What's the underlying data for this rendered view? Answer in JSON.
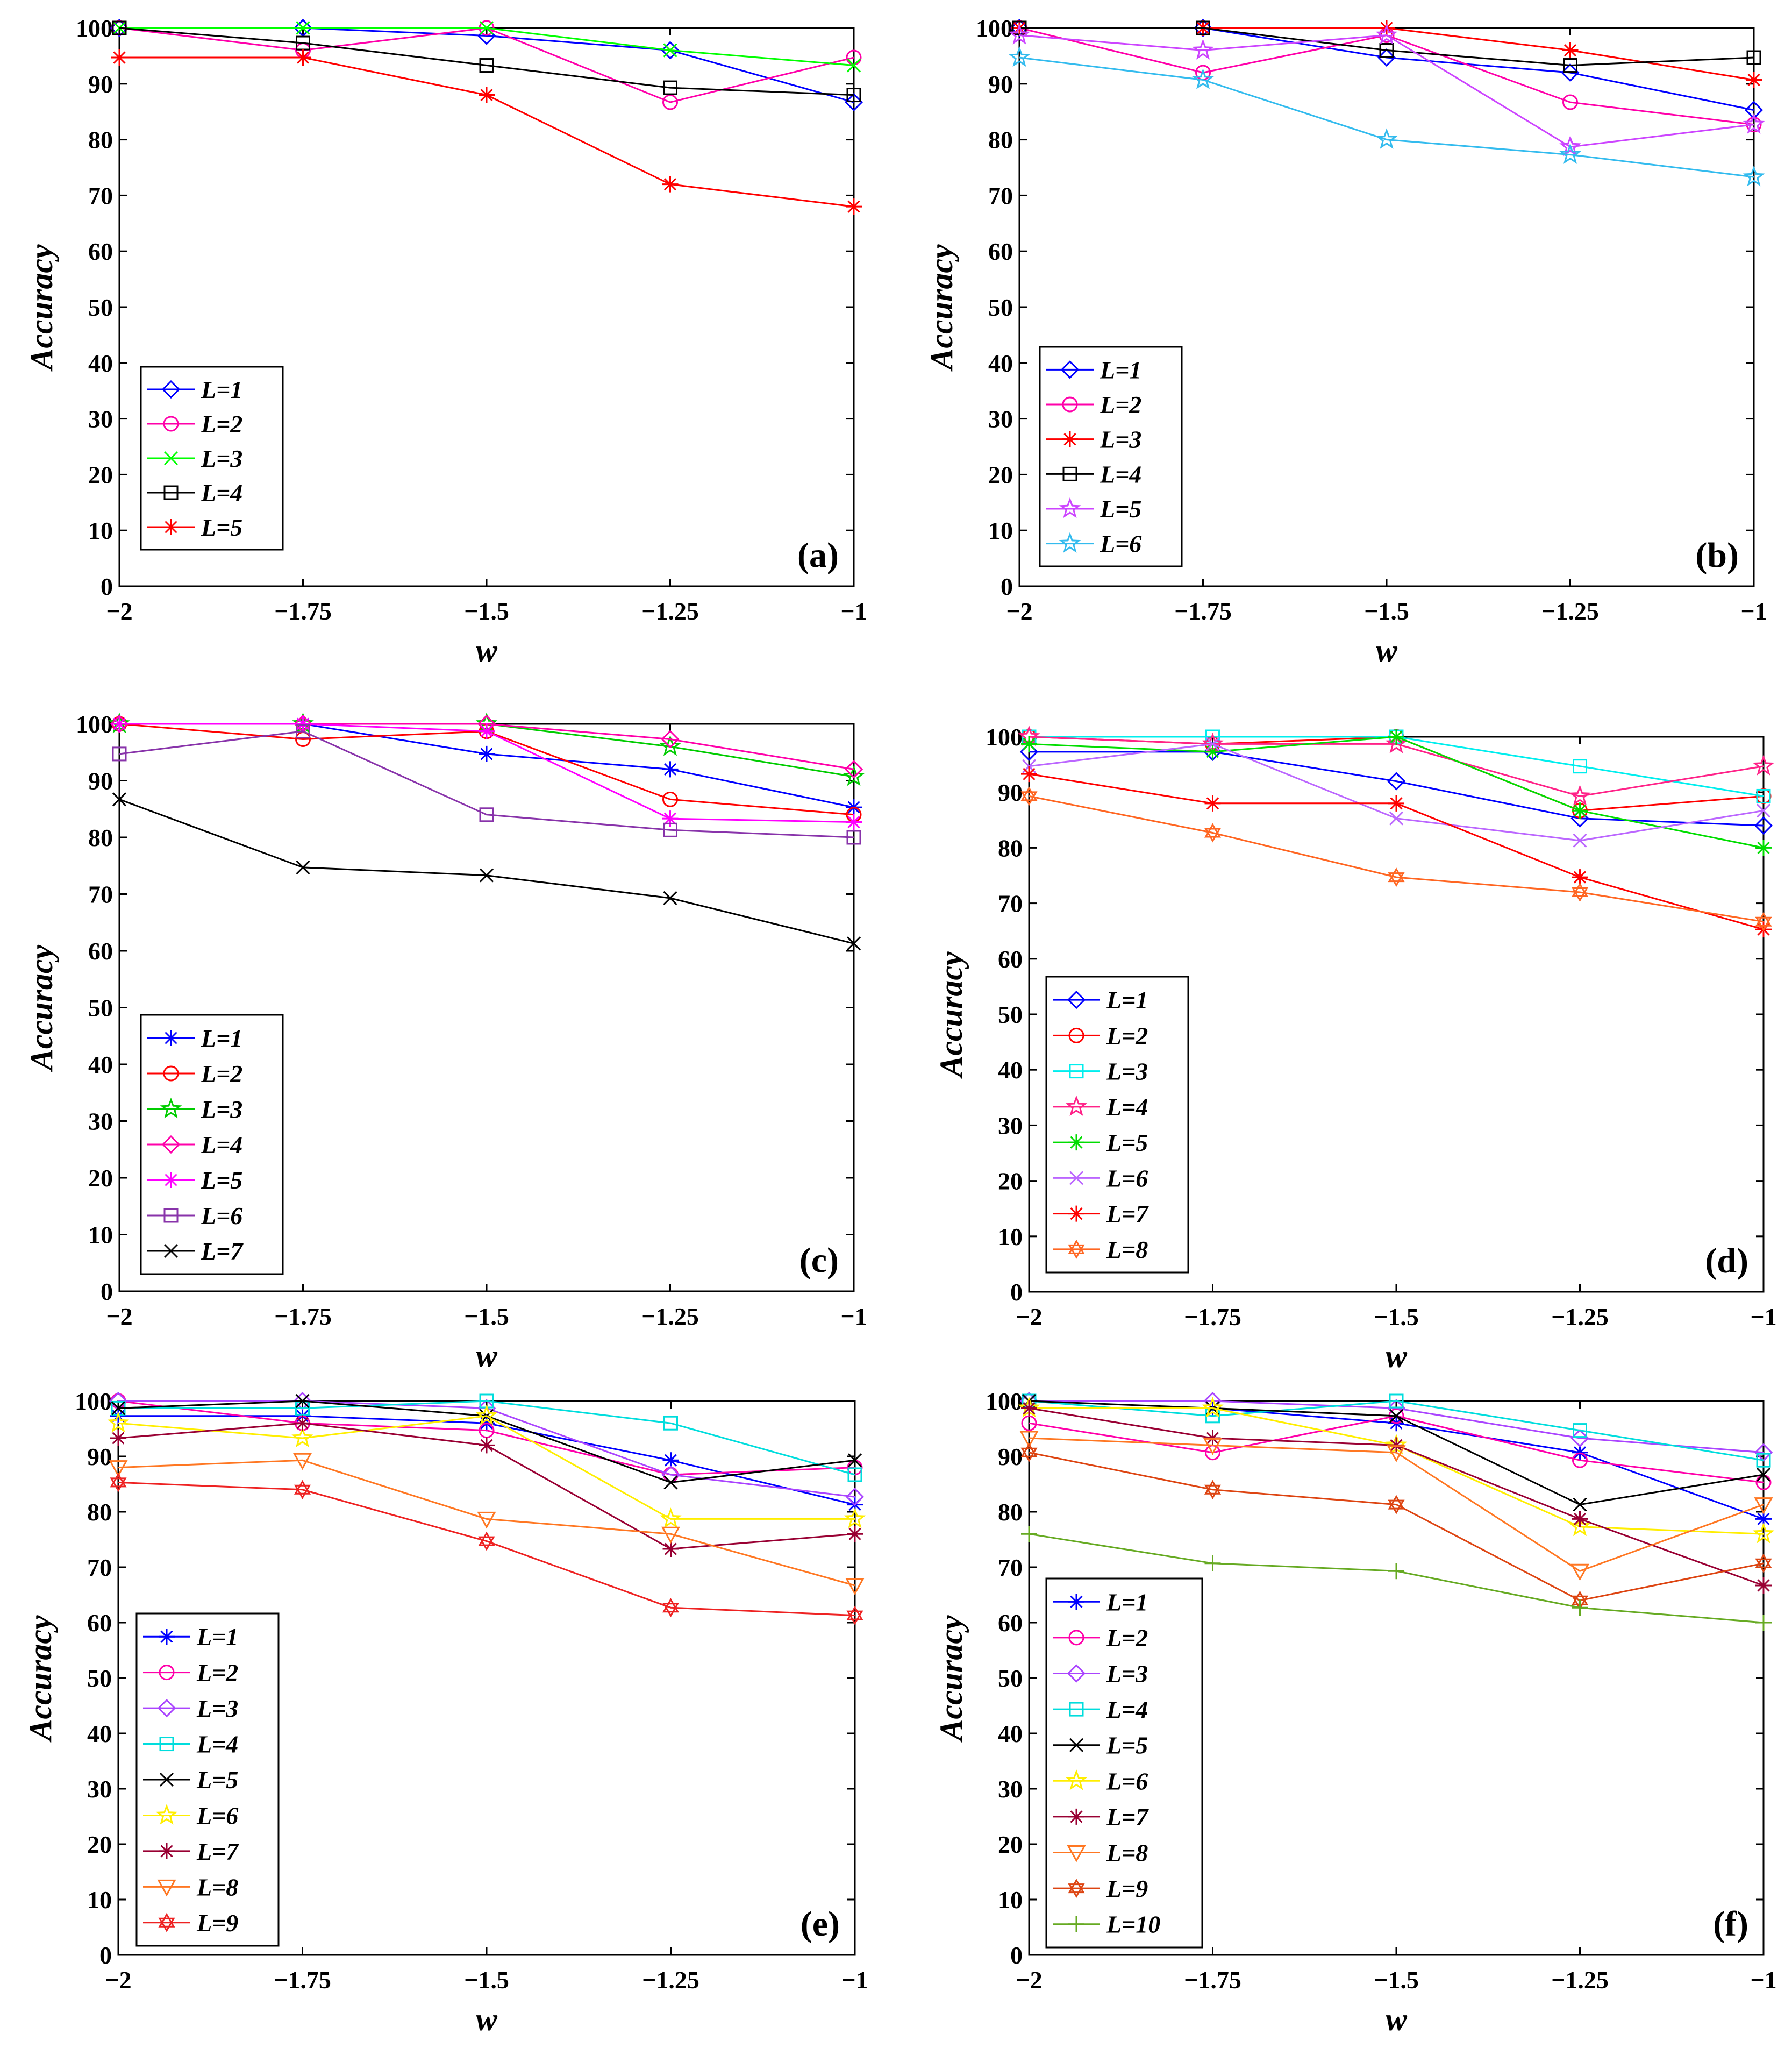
{
  "chart_data": [
    {
      "type": "line",
      "panel_label": "(a)",
      "xlabel": "w",
      "ylabel": "Accuracy",
      "x": [
        -2,
        -1.75,
        -1.5,
        -1.25,
        -1
      ],
      "xticks": [
        "−2",
        "−1.75",
        "−1.5",
        "−1.25",
        "−1"
      ],
      "xlim": [
        -2,
        -1
      ],
      "ylim": [
        0,
        100
      ],
      "yticks": [
        0,
        10,
        20,
        30,
        40,
        50,
        60,
        70,
        80,
        90,
        100
      ],
      "legend_position": "lower-left",
      "series": [
        {
          "name": "L=1",
          "color": "#0000ff",
          "marker": "diamond",
          "values": [
            100,
            100,
            98.6,
            96,
            86.7
          ]
        },
        {
          "name": "L=2",
          "color": "#ff00aa",
          "marker": "circle",
          "values": [
            100,
            96,
            100,
            86.7,
            94.7
          ]
        },
        {
          "name": "L=3",
          "color": "#00ff00",
          "marker": "x",
          "values": [
            100,
            100,
            100,
            96,
            93.3
          ]
        },
        {
          "name": "L=4",
          "color": "#000000",
          "marker": "square",
          "values": [
            100,
            97.3,
            93.3,
            89.3,
            88
          ]
        },
        {
          "name": "L=5",
          "color": "#ff0000",
          "marker": "asterisk",
          "values": [
            94.7,
            94.7,
            88,
            72,
            68
          ]
        }
      ]
    },
    {
      "type": "line",
      "panel_label": "(b)",
      "xlabel": "w",
      "ylabel": "Accuracy",
      "x": [
        -2,
        -1.75,
        -1.5,
        -1.25,
        -1
      ],
      "xticks": [
        "−2",
        "−1.75",
        "−1.5",
        "−1.25",
        "−1"
      ],
      "xlim": [
        -2,
        -1
      ],
      "ylim": [
        0,
        100
      ],
      "yticks": [
        0,
        10,
        20,
        30,
        40,
        50,
        60,
        70,
        80,
        90,
        100
      ],
      "legend_position": "lower-left",
      "series": [
        {
          "name": "L=1",
          "color": "#0000ff",
          "marker": "diamond",
          "values": [
            100,
            100,
            94.7,
            92,
            85.3
          ]
        },
        {
          "name": "L=2",
          "color": "#ff00aa",
          "marker": "circle",
          "values": [
            100,
            92,
            98.7,
            86.7,
            82.7
          ]
        },
        {
          "name": "L=3",
          "color": "#ff0000",
          "marker": "asterisk",
          "values": [
            100,
            100,
            100,
            96,
            90.7
          ]
        },
        {
          "name": "L=4",
          "color": "#000000",
          "marker": "square",
          "values": [
            100,
            100,
            96,
            93.3,
            94.7
          ]
        },
        {
          "name": "L=5",
          "color": "#cc44ff",
          "marker": "star",
          "values": [
            98.7,
            96,
            98.7,
            78.7,
            82.7
          ]
        },
        {
          "name": "L=6",
          "color": "#33bbee",
          "marker": "star",
          "values": [
            94.7,
            90.7,
            80,
            77.3,
            73.3
          ]
        }
      ]
    },
    {
      "type": "line",
      "panel_label": "(c)",
      "xlabel": "w",
      "ylabel": "Accuracy",
      "x": [
        -2,
        -1.75,
        -1.5,
        -1.25,
        -1
      ],
      "xticks": [
        "−2",
        "−1.75",
        "−1.5",
        "−1.25",
        "−1"
      ],
      "xlim": [
        -2,
        -1
      ],
      "ylim": [
        0,
        100
      ],
      "yticks": [
        0,
        10,
        20,
        30,
        40,
        50,
        60,
        70,
        80,
        90,
        100
      ],
      "legend_position": "lower-left",
      "series": [
        {
          "name": "L=1",
          "color": "#0000ff",
          "marker": "asterisk",
          "values": [
            100,
            100,
            94.7,
            92,
            85.3
          ]
        },
        {
          "name": "L=2",
          "color": "#ff0000",
          "marker": "circle",
          "values": [
            100,
            97.3,
            98.7,
            86.7,
            84
          ]
        },
        {
          "name": "L=3",
          "color": "#00cc00",
          "marker": "star",
          "values": [
            100,
            100,
            100,
            96,
            90.7
          ]
        },
        {
          "name": "L=4",
          "color": "#ff00aa",
          "marker": "diamond",
          "values": [
            100,
            100,
            100,
            97.3,
            92
          ]
        },
        {
          "name": "L=5",
          "color": "#ff00ff",
          "marker": "asterisk",
          "values": [
            100,
            100,
            98.7,
            83.3,
            82.7
          ]
        },
        {
          "name": "L=6",
          "color": "#8833aa",
          "marker": "square",
          "values": [
            94.7,
            98.7,
            84,
            81.3,
            80
          ]
        },
        {
          "name": "L=7",
          "color": "#000000",
          "marker": "x",
          "values": [
            86.7,
            74.7,
            73.3,
            69.3,
            61.3
          ]
        }
      ]
    },
    {
      "type": "line",
      "panel_label": "(d)",
      "xlabel": "w",
      "ylabel": "Accuracy",
      "x": [
        -2,
        -1.75,
        -1.5,
        -1.25,
        -1
      ],
      "xticks": [
        "−2",
        "−1.75",
        "−1.5",
        "−1.25",
        "−1"
      ],
      "xlim": [
        -2,
        -1
      ],
      "ylim": [
        0,
        100
      ],
      "yticks": [
        0,
        10,
        20,
        30,
        40,
        50,
        60,
        70,
        80,
        90,
        100
      ],
      "legend_position": "lower-left",
      "series": [
        {
          "name": "L=1",
          "color": "#0000ff",
          "marker": "diamond",
          "values": [
            97.3,
            97.3,
            92,
            85.3,
            84
          ]
        },
        {
          "name": "L=2",
          "color": "#ff0000",
          "marker": "circle",
          "values": [
            100,
            98.7,
            100,
            86.7,
            89.3
          ]
        },
        {
          "name": "L=3",
          "color": "#00eeee",
          "marker": "square",
          "values": [
            100,
            100,
            100,
            94.7,
            89.3
          ]
        },
        {
          "name": "L=4",
          "color": "#ff2288",
          "marker": "star",
          "values": [
            100,
            98.7,
            98.7,
            89.3,
            94.7
          ]
        },
        {
          "name": "L=5",
          "color": "#00dd00",
          "marker": "asterisk",
          "values": [
            98.7,
            97.3,
            100,
            86.7,
            80
          ]
        },
        {
          "name": "L=6",
          "color": "#bb66ff",
          "marker": "x",
          "values": [
            94.7,
            98.7,
            85.3,
            81.3,
            86.7
          ]
        },
        {
          "name": "L=7",
          "color": "#ff0000",
          "marker": "asterisk",
          "values": [
            93.3,
            88,
            88,
            74.7,
            65.3
          ]
        },
        {
          "name": "L=8",
          "color": "#ff6622",
          "marker": "hexagram",
          "values": [
            89.3,
            82.7,
            74.7,
            72,
            66.7
          ]
        }
      ]
    },
    {
      "type": "line",
      "panel_label": "(e)",
      "xlabel": "w",
      "ylabel": "Accuracy",
      "x": [
        -2,
        -1.75,
        -1.5,
        -1.25,
        -1
      ],
      "xticks": [
        "−2",
        "−1.75",
        "−1.5",
        "−1.25",
        "−1"
      ],
      "xlim": [
        -2,
        -1
      ],
      "ylim": [
        0,
        100
      ],
      "yticks": [
        0,
        10,
        20,
        30,
        40,
        50,
        60,
        70,
        80,
        90,
        100
      ],
      "legend_position": "lower-left",
      "series": [
        {
          "name": "L=1",
          "color": "#0000ff",
          "marker": "asterisk",
          "values": [
            97.3,
            97.3,
            96,
            89.3,
            81.3
          ]
        },
        {
          "name": "L=2",
          "color": "#ff00aa",
          "marker": "circle",
          "values": [
            100,
            96,
            94.7,
            86.7,
            88
          ]
        },
        {
          "name": "L=3",
          "color": "#aa44ff",
          "marker": "diamond",
          "values": [
            100,
            100,
            98.7,
            86.7,
            82.7
          ]
        },
        {
          "name": "L=4",
          "color": "#00dddd",
          "marker": "square",
          "values": [
            98.7,
            98.7,
            100,
            96,
            86.7
          ]
        },
        {
          "name": "L=5",
          "color": "#000000",
          "marker": "x",
          "values": [
            98.7,
            100,
            97.3,
            85.3,
            89.3
          ]
        },
        {
          "name": "L=6",
          "color": "#ffee00",
          "marker": "star",
          "values": [
            96,
            93.3,
            97.3,
            78.7,
            78.7
          ]
        },
        {
          "name": "L=7",
          "color": "#990033",
          "marker": "asterisk",
          "values": [
            93.3,
            96,
            92,
            73.3,
            76
          ]
        },
        {
          "name": "L=8",
          "color": "#ff7722",
          "marker": "triangle-down",
          "values": [
            88,
            89.3,
            78.7,
            76,
            66.7
          ]
        },
        {
          "name": "L=9",
          "color": "#ee2222",
          "marker": "hexagram",
          "values": [
            85.3,
            84,
            74.7,
            62.7,
            61.3
          ]
        }
      ]
    },
    {
      "type": "line",
      "panel_label": "(f)",
      "xlabel": "w",
      "ylabel": "Accuracy",
      "x": [
        -2,
        -1.75,
        -1.5,
        -1.25,
        -1
      ],
      "xticks": [
        "−2",
        "−1.75",
        "−1.5",
        "−1.25",
        "−1"
      ],
      "xlim": [
        -2,
        -1
      ],
      "ylim": [
        0,
        100
      ],
      "yticks": [
        0,
        10,
        20,
        30,
        40,
        50,
        60,
        70,
        80,
        90,
        100
      ],
      "legend_position": "lower-left",
      "series": [
        {
          "name": "L=1",
          "color": "#0000ff",
          "marker": "asterisk",
          "values": [
            98.7,
            98.7,
            96,
            90.7,
            78.7
          ]
        },
        {
          "name": "L=2",
          "color": "#ff00aa",
          "marker": "circle",
          "values": [
            96,
            90.7,
            97.3,
            89.3,
            85.3
          ]
        },
        {
          "name": "L=3",
          "color": "#aa44ff",
          "marker": "diamond",
          "values": [
            100,
            100,
            98.7,
            93.3,
            90.7
          ]
        },
        {
          "name": "L=4",
          "color": "#00dddd",
          "marker": "square",
          "values": [
            100,
            97.3,
            100,
            94.7,
            89.3
          ]
        },
        {
          "name": "L=5",
          "color": "#000000",
          "marker": "x",
          "values": [
            100,
            98.7,
            97.3,
            81.3,
            86.7
          ]
        },
        {
          "name": "L=6",
          "color": "#ffee00",
          "marker": "star",
          "values": [
            98.7,
            98.7,
            92,
            77.3,
            76
          ]
        },
        {
          "name": "L=7",
          "color": "#990033",
          "marker": "asterisk",
          "values": [
            98.7,
            93.3,
            92,
            78.7,
            66.7
          ]
        },
        {
          "name": "L=8",
          "color": "#ff7722",
          "marker": "triangle-down",
          "values": [
            93.3,
            92,
            90.7,
            69.3,
            81.3
          ]
        },
        {
          "name": "L=9",
          "color": "#dd4411",
          "marker": "hexagram",
          "values": [
            90.7,
            84,
            81.3,
            64,
            70.7
          ]
        },
        {
          "name": "L=10",
          "color": "#66aa22",
          "marker": "plus",
          "values": [
            76,
            70.7,
            69.3,
            62.7,
            60
          ]
        }
      ]
    }
  ]
}
